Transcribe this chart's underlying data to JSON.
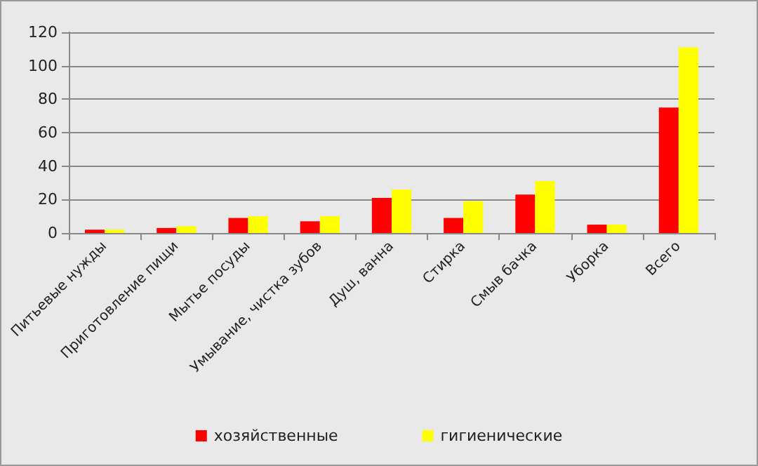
{
  "chart_data": {
    "type": "bar",
    "categories": [
      "Питьевые нужды",
      "Приготовление пищи",
      "Мытье посуды",
      "Умывание, чистка зубов",
      "Душ, ванна",
      "Стирка",
      "Смыв бачка",
      "Уборка",
      "Всего"
    ],
    "series": [
      {
        "name": "хозяйственные",
        "color": "#ff0000",
        "values": [
          2,
          3,
          9,
          7,
          21,
          9,
          23,
          5,
          75
        ]
      },
      {
        "name": "гигиенические",
        "color": "#ffff00",
        "values": [
          2,
          4,
          10,
          10,
          26,
          19,
          31,
          5,
          111
        ]
      }
    ],
    "ylim": [
      0,
      120
    ],
    "yticks": [
      0,
      20,
      40,
      60,
      80,
      100,
      120
    ],
    "grid": "y",
    "legend": "bottom"
  }
}
